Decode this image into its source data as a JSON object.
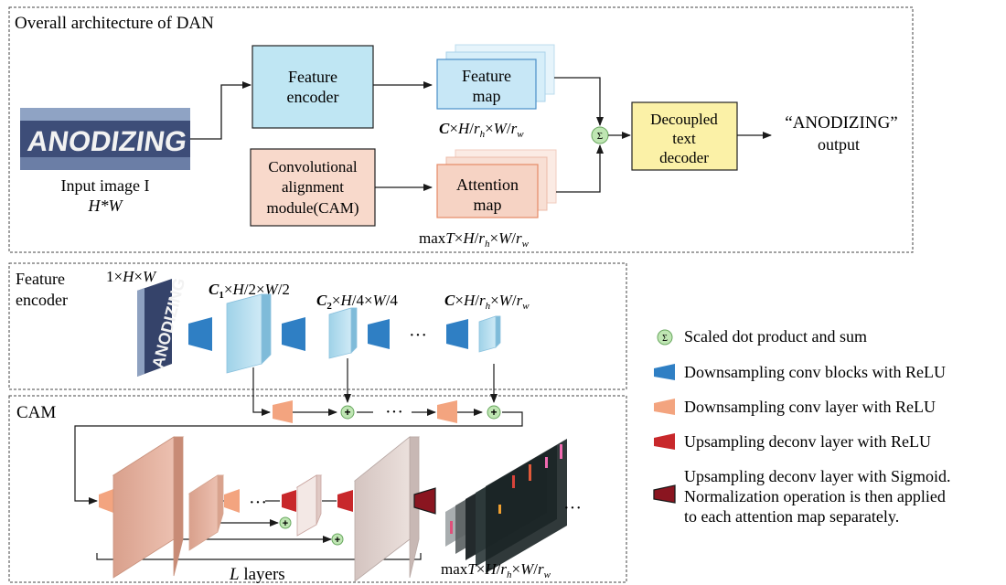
{
  "top_panel": {
    "title": "Overall architecture of DAN",
    "input_caption_line1": "Input image I",
    "input_caption_line2": "H*W",
    "feature_encoder_line1": "Feature",
    "feature_encoder_line2": "encoder",
    "cam_line1": "Convolutional",
    "cam_line2": "alignment",
    "cam_line3": "module(CAM)",
    "feature_map_line1": "Feature",
    "feature_map_line2": "map",
    "feature_map_dims": "C×H/r_h×W/r_w",
    "attention_map_line1": "Attention",
    "attention_map_line2": "map",
    "attention_map_dims": "maxT×H/r_h×W/r_w",
    "decoder_line1": "Decoupled",
    "decoder_line2": "text",
    "decoder_line3": "decoder",
    "output_text": "“ANODIZING”",
    "output_label": "output",
    "image_word": "ANODIZING",
    "sigma_symbol": "Σ"
  },
  "encoder_panel": {
    "title_line1": "Feature",
    "title_line2": "encoder",
    "dim_input": "1×H×W",
    "dim_stage1": "C1×H/2×W/2",
    "dim_stage2": "C2×H/4×W/4",
    "dim_stage3": "C×H/r_h×W/r_w",
    "ellipsis": "···",
    "image_word": "ANODIZING"
  },
  "cam_panel": {
    "title": "CAM",
    "ellipsis": "···",
    "plus_symbol": "+",
    "layers_label": "L layers",
    "output_dims": "maxT×H/r_h×W/r_w"
  },
  "legend": {
    "sigma_symbol": "Σ",
    "items": [
      "Scaled dot product and sum",
      "Downsampling conv blocks with ReLU",
      "Downsampling conv layer with ReLU",
      "Upsampling deconv layer with ReLU",
      "Upsampling deconv layer with Sigmoid.",
      "Normalization operation is then applied",
      "to each attention map separately."
    ]
  },
  "colors": {
    "feature_encoder_fill": "#bfe6f3",
    "cam_fill": "#f8d9cb",
    "decoder_fill": "#fbf1a7",
    "sigma_fill": "#bfe6b3",
    "conv_block_blue": "#2f7fc4",
    "conv_layer_salmon": "#f3a47f",
    "deconv_relu_red": "#c8282b",
    "deconv_sigmoid_dark": "#8a1520",
    "feature_slab": "#bfe3f1",
    "cam_slab": "#e8b8a8"
  }
}
